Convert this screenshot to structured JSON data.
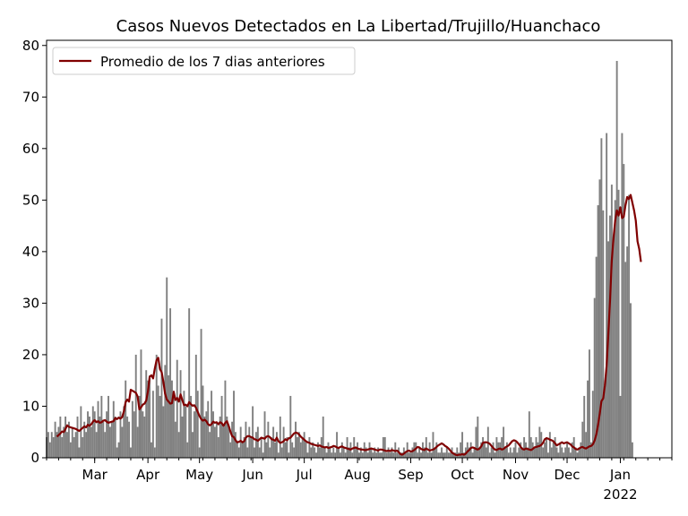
{
  "chart_data": {
    "type": "bar+line",
    "title": "Casos Nuevos Detectados en La Libertad/Trujillo/Huanchaco",
    "xlabel": "",
    "ylabel": "",
    "ylim": [
      0,
      81
    ],
    "yticks": [
      0,
      10,
      20,
      30,
      40,
      50,
      60,
      70,
      80
    ],
    "x_range": [
      "2021-02-01",
      "2022-01-31"
    ],
    "x_ticks": [
      {
        "date": "2021-03-01",
        "label": "Mar"
      },
      {
        "date": "2021-04-01",
        "label": "Apr"
      },
      {
        "date": "2021-05-01",
        "label": "May"
      },
      {
        "date": "2021-06-01",
        "label": "Jun"
      },
      {
        "date": "2021-07-01",
        "label": "Jul"
      },
      {
        "date": "2021-08-01",
        "label": "Aug"
      },
      {
        "date": "2021-09-01",
        "label": "Sep"
      },
      {
        "date": "2021-10-01",
        "label": "Oct"
      },
      {
        "date": "2021-11-01",
        "label": "Nov"
      },
      {
        "date": "2021-12-01",
        "label": "Dec"
      },
      {
        "date": "2022-01-01",
        "label": "Jan",
        "sublabel": "2022"
      }
    ],
    "legend": {
      "position": "top-left",
      "entries": [
        "Promedio de los 7 dias anteriores"
      ]
    },
    "grid": false,
    "bar_color": "#808080",
    "line_color": "#800000",
    "series": [
      {
        "kind": "bar",
        "start_date": "2021-02-01",
        "values": [
          4,
          5,
          3,
          5,
          4,
          7,
          5,
          6,
          8,
          4,
          6,
          8,
          5,
          7,
          3,
          6,
          4,
          5,
          8,
          2,
          10,
          4,
          7,
          5,
          9,
          8,
          6,
          10,
          9,
          5,
          11,
          8,
          12,
          7,
          5,
          9,
          12,
          6,
          7,
          11,
          8,
          2,
          3,
          9,
          6,
          10,
          15,
          8,
          7,
          2,
          11,
          9,
          20,
          6,
          12,
          21,
          9,
          8,
          17,
          15,
          16,
          3,
          13,
          2,
          20,
          14,
          12,
          27,
          10,
          18,
          35,
          16,
          29,
          15,
          13,
          7,
          19,
          5,
          17,
          8,
          13,
          10,
          3,
          29,
          12,
          5,
          9,
          20,
          13,
          2,
          25,
          14,
          8,
          9,
          11,
          5,
          13,
          9,
          6,
          7,
          4,
          8,
          12,
          6,
          15,
          8,
          6,
          3,
          7,
          13,
          5,
          3,
          2,
          6,
          3,
          4,
          7,
          2,
          6,
          4,
          10,
          2,
          5,
          6,
          2,
          4,
          1,
          9,
          3,
          7,
          2,
          4,
          6,
          3,
          5,
          1,
          8,
          2,
          6,
          3,
          4,
          1,
          12,
          3,
          2,
          7,
          4,
          5,
          3,
          4,
          5,
          3,
          1,
          4,
          2,
          3,
          2,
          1,
          3,
          2,
          4,
          8,
          2,
          1,
          3,
          2,
          1,
          2,
          1,
          5,
          2,
          1,
          3,
          2,
          1,
          4,
          2,
          3,
          1,
          4,
          2,
          3,
          1,
          2,
          1,
          3,
          2,
          1,
          3,
          2,
          1,
          2,
          1,
          2,
          1,
          1,
          4,
          4,
          1,
          2,
          1,
          2,
          1,
          3,
          1,
          2,
          1,
          1,
          2,
          1,
          3,
          1,
          1,
          2,
          3,
          3,
          1,
          2,
          1,
          3,
          2,
          4,
          1,
          3,
          1,
          5,
          2,
          3,
          1,
          1,
          2,
          1,
          1,
          2,
          1,
          1,
          2,
          1,
          1,
          2,
          1,
          3,
          5,
          1,
          2,
          3,
          2,
          3,
          1,
          2,
          6,
          8,
          2,
          3,
          4,
          3,
          2,
          6,
          1,
          2,
          3,
          1,
          4,
          3,
          3,
          4,
          6,
          2,
          3,
          1,
          2,
          1,
          2,
          3,
          1,
          2,
          3,
          2,
          4,
          3,
          2,
          9,
          4,
          3,
          2,
          4,
          3,
          6,
          5,
          2,
          3,
          4,
          1,
          5,
          2,
          3,
          4,
          2,
          1,
          3,
          2,
          1,
          2,
          3,
          2,
          1,
          3,
          4,
          2,
          1,
          2,
          3,
          7,
          12,
          5,
          15,
          21,
          3,
          13,
          31,
          39,
          49,
          54,
          62,
          48,
          14,
          63,
          42,
          47,
          53,
          43,
          50,
          77,
          52,
          12,
          63,
          57,
          38,
          41,
          51,
          30,
          3
        ]
      },
      {
        "kind": "line",
        "name": "Promedio de los 7 dias anteriores",
        "start_date": "2021-02-07",
        "values": [
          4.1,
          4.4,
          4.7,
          5.1,
          5.0,
          5.6,
          6.3,
          6.0,
          5.9,
          5.8,
          5.7,
          5.6,
          5.4,
          5.2,
          5.5,
          5.8,
          6.1,
          5.9,
          6.4,
          6.2,
          6.5,
          7.0,
          7.3,
          6.9,
          7.1,
          6.8,
          6.9,
          7.2,
          7.3,
          7.0,
          6.8,
          6.9,
          7.0,
          7.1,
          7.7,
          7.5,
          7.8,
          7.6,
          7.9,
          9.0,
          10.8,
          11.3,
          10.9,
          13.2,
          13.0,
          12.8,
          12.6,
          11.9,
          9.4,
          9.8,
          10.3,
          10.5,
          11.1,
          12.9,
          15.7,
          16.0,
          15.4,
          17.3,
          18.9,
          19.4,
          17.2,
          16.6,
          14.7,
          12.4,
          11.3,
          10.9,
          10.5,
          10.6,
          12.8,
          11.2,
          11.6,
          10.9,
          12.3,
          11.2,
          10.2,
          10.3,
          10.0,
          10.8,
          10.4,
          10.1,
          10.2,
          9.7,
          8.9,
          8.1,
          7.5,
          7.2,
          7.4,
          7.1,
          6.5,
          6.3,
          6.5,
          7.0,
          6.8,
          6.9,
          6.5,
          6.9,
          6.7,
          6.2,
          6.8,
          7.1,
          6.2,
          5.1,
          4.2,
          4.0,
          3.4,
          3.0,
          3.1,
          3.3,
          3.0,
          3.2,
          3.9,
          4.2,
          4.2,
          4.0,
          3.9,
          3.6,
          3.5,
          3.3,
          3.6,
          3.9,
          3.8,
          3.7,
          4.1,
          4.2,
          4.0,
          3.6,
          3.5,
          3.3,
          3.9,
          3.2,
          2.9,
          3.0,
          3.2,
          3.6,
          3.4,
          3.8,
          3.9,
          4.3,
          4.7,
          4.9,
          4.8,
          4.5,
          4.1,
          3.8,
          3.5,
          3.2,
          3.0,
          2.9,
          2.7,
          2.6,
          2.5,
          2.4,
          2.3,
          2.4,
          2.2,
          2.1,
          2.0,
          2.1,
          1.9,
          2.0,
          2.1,
          2.3,
          2.2,
          2.0,
          1.9,
          2.1,
          2.2,
          2.0,
          1.9,
          1.8,
          1.7,
          1.6,
          1.8,
          1.9,
          2.0,
          1.8,
          1.7,
          1.6,
          1.6,
          1.5,
          1.5,
          1.6,
          1.7,
          1.8,
          1.7,
          1.6,
          1.5,
          1.4,
          1.6,
          1.6,
          1.5,
          1.4,
          1.3,
          1.4,
          1.3,
          1.5,
          1.4,
          1.3,
          1.4,
          1.1,
          0.7,
          0.6,
          0.8,
          1.1,
          1.3,
          1.4,
          1.2,
          1.3,
          1.5,
          1.8,
          2.1,
          2.0,
          1.7,
          1.6,
          1.5,
          1.8,
          1.6,
          1.4,
          1.5,
          1.6,
          1.8,
          2.1,
          2.4,
          2.6,
          2.8,
          2.6,
          2.3,
          2.1,
          1.8,
          1.4,
          1.0,
          0.8,
          0.6,
          0.5,
          0.6,
          0.6,
          0.7,
          0.6,
          0.8,
          1.2,
          1.5,
          1.9,
          2.0,
          1.9,
          1.7,
          1.6,
          1.8,
          2.2,
          2.9,
          3.0,
          3.0,
          2.9,
          2.7,
          2.3,
          1.9,
          1.6,
          1.5,
          1.7,
          1.8,
          1.6,
          1.7,
          2.0,
          2.2,
          2.4,
          2.8,
          3.2,
          3.4,
          3.3,
          3.0,
          2.6,
          2.1,
          1.7,
          1.6,
          1.8,
          1.7,
          1.6,
          1.5,
          1.7,
          2.0,
          2.1,
          2.2,
          2.3,
          2.5,
          2.9,
          3.6,
          3.8,
          3.7,
          3.5,
          3.4,
          3.2,
          2.8,
          2.4,
          2.6,
          2.8,
          3.0,
          2.8,
          2.9,
          3.0,
          2.8,
          2.6,
          2.2,
          2.0,
          1.7,
          1.6,
          1.8,
          2.0,
          2.1,
          1.9,
          1.8,
          2.0,
          2.2,
          2.3,
          2.6,
          3.3,
          4.5,
          6.3,
          8.5,
          11.0,
          11.5,
          14.0,
          17.8,
          24.0,
          30.5,
          38.2,
          42.5,
          46.0,
          48.0,
          47.0,
          48.6,
          46.5,
          46.8,
          49.0,
          50.6,
          50.2,
          51.0,
          49.5,
          48.0,
          46.0,
          42.0,
          40.5,
          38.0
        ]
      }
    ]
  }
}
